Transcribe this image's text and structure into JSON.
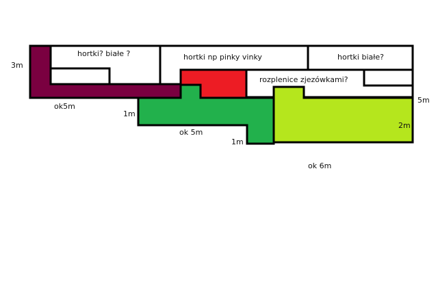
{
  "colors": {
    "outline": "#000000",
    "maroon": "#7a0040",
    "red": "#ed1c24",
    "green": "#22b14c",
    "lime": "#b5e61d",
    "white": "#ffffff"
  },
  "labels": {
    "hortki_biale_q1": "hortki?  białe ?",
    "hortki_pinky": "hortki np pinky vinky",
    "hortki_biale_q2": "hortki białe?",
    "rozplenice": "rozplenice zjezówkami?",
    "dim_3m": "3m",
    "dim_ok5m_left": "ok5m",
    "dim_1m_green": "1m",
    "dim_ok5m_green": "ok 5m",
    "dim_1m_bottom": "1m",
    "dim_5m": "5m",
    "dim_2m": "2m",
    "dim_ok6m": "ok 6m"
  }
}
